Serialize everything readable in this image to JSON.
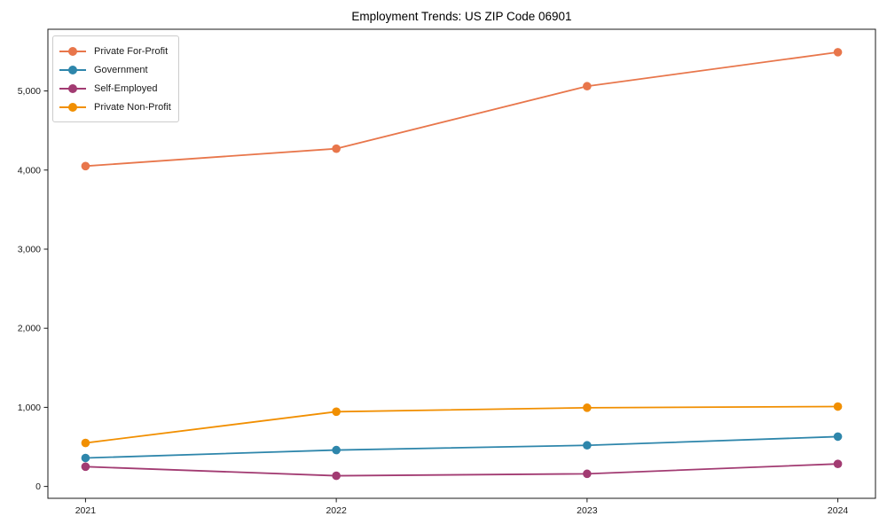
{
  "chart_data": {
    "type": "line",
    "title": "Employment Trends: US ZIP Code 06901",
    "xlabel": "",
    "ylabel": "",
    "x": [
      2021,
      2022,
      2023,
      2024
    ],
    "x_tick_labels": [
      "2021",
      "2022",
      "2023",
      "2024"
    ],
    "y_ticks": [
      0,
      1000,
      2000,
      3000,
      4000,
      5000
    ],
    "y_tick_labels": [
      "0",
      "1,000",
      "2,000",
      "3,000",
      "4,000",
      "5,000"
    ],
    "xlim": [
      2020.85,
      2024.15
    ],
    "ylim": [
      -150,
      5780
    ],
    "grid": false,
    "legend_position": "upper-left",
    "series": [
      {
        "name": "Private For-Profit",
        "color": "#e8764b",
        "values": [
          4050,
          4270,
          5060,
          5490
        ]
      },
      {
        "name": "Government",
        "color": "#2e86ab",
        "values": [
          360,
          460,
          520,
          630
        ]
      },
      {
        "name": "Self-Employed",
        "color": "#a23b72",
        "values": [
          250,
          135,
          160,
          285
        ]
      },
      {
        "name": "Private Non-Profit",
        "color": "#f18f01",
        "values": [
          550,
          945,
          995,
          1010
        ]
      }
    ]
  }
}
